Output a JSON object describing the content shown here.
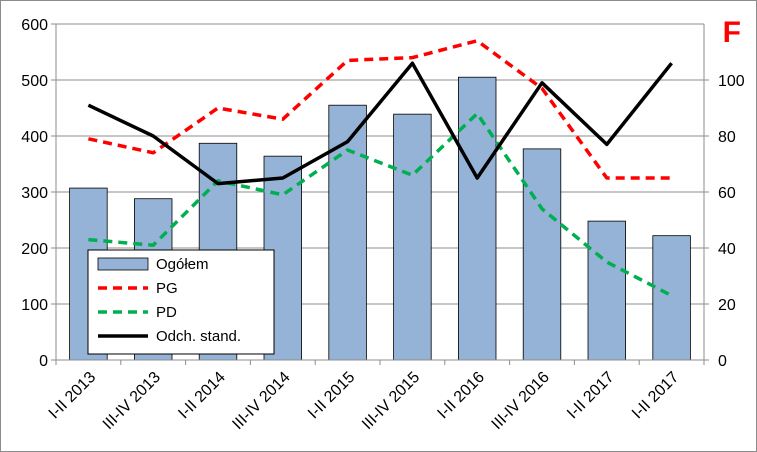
{
  "chart_data": {
    "type": "bar",
    "corner_label": "F",
    "categories": [
      "I-II 2013",
      "III-IV 2013",
      "I-II 2014",
      "III-IV 2014",
      "I-II 2015",
      "III-IV 2015",
      "I-II 2016",
      "III-IV 2016",
      "I-II 2017",
      "I-II 2017"
    ],
    "series": [
      {
        "name": "Ogółem",
        "type": "bar",
        "axis": "left",
        "color": "#95b3d7",
        "values": [
          307,
          288,
          387,
          364,
          455,
          439,
          505,
          377,
          248,
          222
        ]
      },
      {
        "name": "PG",
        "type": "line",
        "style": "dashed",
        "axis": "right",
        "color": "#ff0000",
        "values": [
          79,
          74,
          90,
          86,
          107,
          108,
          114,
          97,
          65,
          65
        ]
      },
      {
        "name": "PD",
        "type": "line",
        "style": "dashed",
        "axis": "right",
        "color": "#00b050",
        "values": [
          43,
          41,
          64,
          59,
          75,
          66,
          88,
          54,
          35,
          23
        ]
      },
      {
        "name": "Odch. stand.",
        "type": "line",
        "style": "solid",
        "axis": "right",
        "color": "#000000",
        "values": [
          91,
          80,
          63,
          65,
          78,
          106,
          65,
          99,
          77,
          106
        ]
      }
    ],
    "y_left": {
      "min": 0,
      "max": 600,
      "ticks": [
        0,
        100,
        200,
        300,
        400,
        500,
        600
      ]
    },
    "y_right": {
      "min": 0,
      "max": 120,
      "ticks": [
        0,
        20,
        40,
        60,
        80,
        100
      ]
    },
    "grid": "horizontal",
    "legend_position": "bottom-left-inside"
  }
}
